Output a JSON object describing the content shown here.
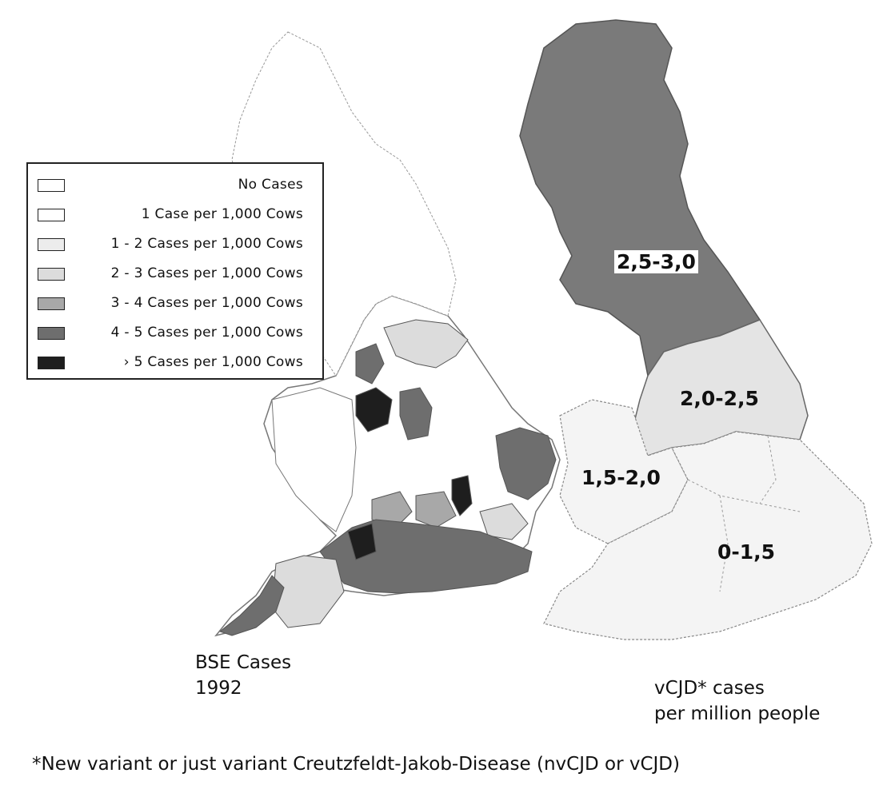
{
  "legend": {
    "items": [
      {
        "label": "No Cases",
        "color": "#ffffff"
      },
      {
        "label": "1 Case per 1,000 Cows",
        "color": "#ffffff"
      },
      {
        "label": "1 - 2 Cases per 1,000 Cows",
        "color": "#ececec"
      },
      {
        "label": "2 - 3 Cases per 1,000 Cows",
        "color": "#dcdcdc"
      },
      {
        "label": "3 - 4 Cases per 1,000 Cows",
        "color": "#a8a8a8"
      },
      {
        "label": "4 - 5 Cases per 1,000 Cows",
        "color": "#6e6e6e"
      },
      {
        "label": "› 5 Cases per 1,000 Cows",
        "color": "#1e1e1e"
      }
    ]
  },
  "vcjd_regions": {
    "scotland": "2,5-3,0",
    "north": "2,0-2,5",
    "midlands_wales": "1,5-2,0",
    "south": "0-1,5"
  },
  "captions": {
    "bse_line1": "BSE Cases",
    "bse_line2": "1992",
    "vcjd_line1": "vCJD* cases",
    "vcjd_line2": "per million people"
  },
  "footnote": "*New variant or just variant Creutzfeldt-Jakob-Disease (nvCJD or vCJD)",
  "colors": {
    "scotland_fill": "#7a7a7a",
    "north_fill": "#e4e4e4",
    "light_fill": "#f4f4f4",
    "outline": "#555555"
  }
}
